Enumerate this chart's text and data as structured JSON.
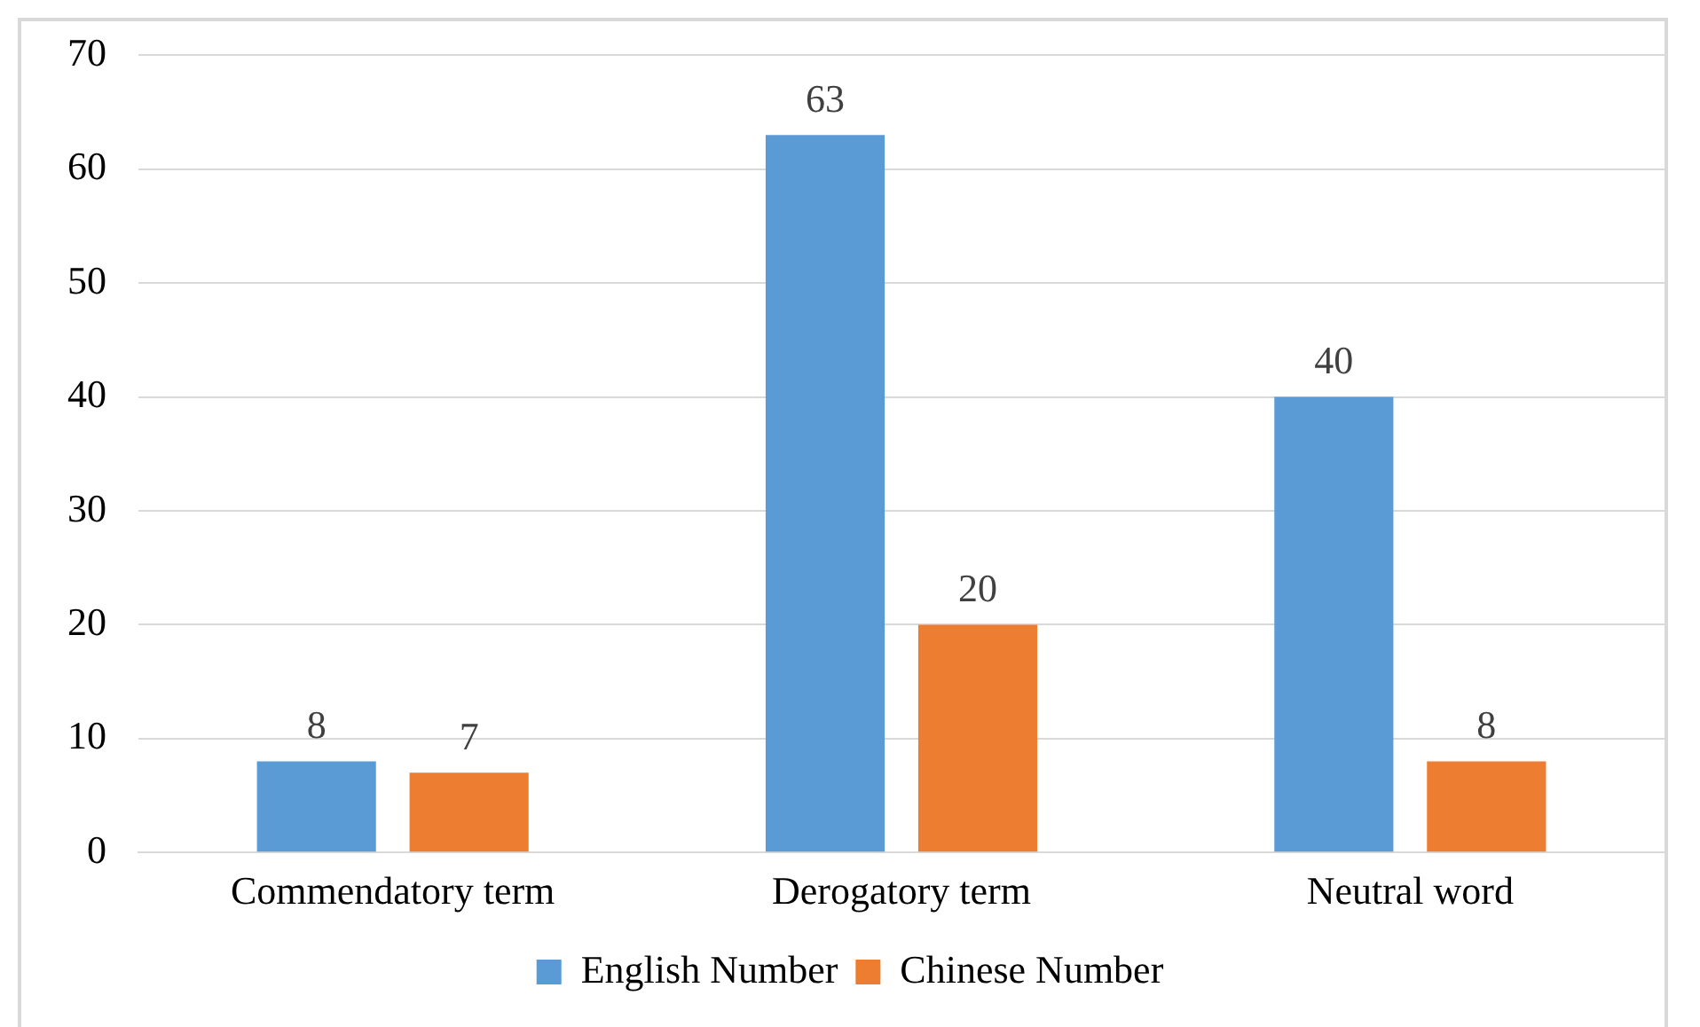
{
  "chart_data": {
    "type": "bar",
    "categories": [
      "Commendatory term",
      "Derogatory term",
      "Neutral word"
    ],
    "series": [
      {
        "name": "English Number",
        "color": "#5b9bd5",
        "values": [
          8,
          63,
          40
        ]
      },
      {
        "name": "Chinese Number",
        "color": "#ed7d31",
        "values": [
          7,
          20,
          8
        ]
      }
    ],
    "ylim": [
      0,
      70
    ],
    "yticks": [
      0,
      10,
      20,
      30,
      40,
      50,
      60,
      70
    ],
    "grid": "y",
    "legend": "bottom",
    "data_labels": true
  }
}
